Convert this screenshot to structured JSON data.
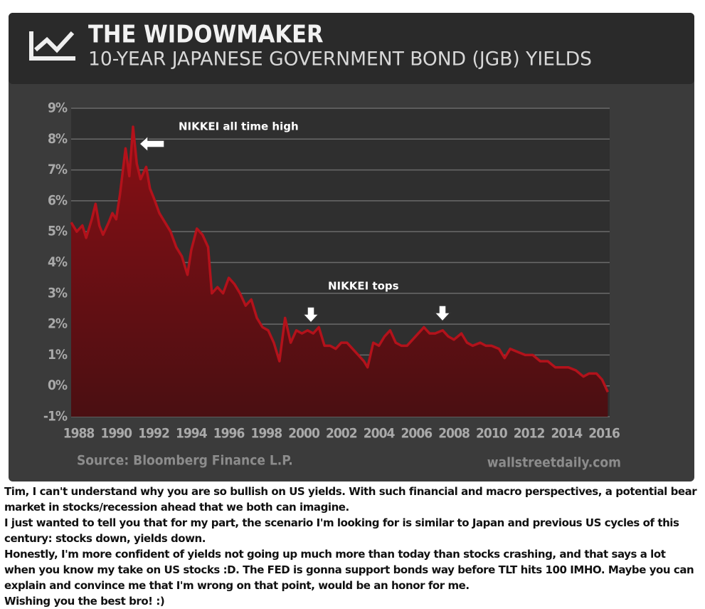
{
  "chart_data": {
    "type": "area",
    "title": "THE WIDOWMAKER",
    "subtitle": "10-YEAR JAPANESE GOVERNMENT BOND (JGB) YIELDS",
    "source": "Source: Bloomberg Finance L.P.",
    "credit": "wallstreetdaily.com",
    "annotations": [
      "NIKKEI all time high",
      "NIKKEI tops"
    ],
    "color": "#b3121b",
    "grid": true,
    "xlim": [
      1987.6,
      2016.3
    ],
    "xticks": [
      1988,
      1990,
      1992,
      1994,
      1996,
      1998,
      2000,
      2002,
      2004,
      2006,
      2008,
      2010,
      2012,
      2014,
      2016
    ],
    "ylim": [
      -1,
      9
    ],
    "yticks": [
      {
        "value": 9,
        "label": "9%"
      },
      {
        "value": 8,
        "label": "8%"
      },
      {
        "value": 7,
        "label": "7%"
      },
      {
        "value": 6,
        "label": "6%"
      },
      {
        "value": 5,
        "label": "5%"
      },
      {
        "value": 4,
        "label": "4%"
      },
      {
        "value": 3,
        "label": "3%"
      },
      {
        "value": 2,
        "label": "2%"
      },
      {
        "value": 1,
        "label": "1%"
      },
      {
        "value": 0,
        "label": "0%"
      },
      {
        "value": -1,
        "label": "-1%"
      }
    ],
    "x": [
      1987.6,
      1987.9,
      1988.2,
      1988.4,
      1988.7,
      1988.9,
      1989.1,
      1989.3,
      1989.6,
      1989.8,
      1990.0,
      1990.2,
      1990.5,
      1990.7,
      1990.9,
      1991.1,
      1991.3,
      1991.6,
      1991.8,
      1992.0,
      1992.3,
      1992.6,
      1992.9,
      1993.2,
      1993.5,
      1993.8,
      1994.0,
      1994.3,
      1994.6,
      1994.9,
      1995.1,
      1995.4,
      1995.7,
      1996.0,
      1996.3,
      1996.6,
      1996.9,
      1997.2,
      1997.5,
      1997.8,
      1998.1,
      1998.4,
      1998.7,
      1999.0,
      1999.3,
      1999.6,
      1999.9,
      2000.2,
      2000.5,
      2000.8,
      2001.1,
      2001.4,
      2001.7,
      2002.0,
      2002.3,
      2002.6,
      2002.9,
      2003.2,
      2003.4,
      2003.7,
      2004.0,
      2004.3,
      2004.6,
      2004.9,
      2005.2,
      2005.5,
      2005.8,
      2006.1,
      2006.4,
      2006.7,
      2007.0,
      2007.4,
      2007.7,
      2008.0,
      2008.4,
      2008.7,
      2009.0,
      2009.4,
      2009.7,
      2010.0,
      2010.4,
      2010.7,
      2011.0,
      2011.4,
      2011.8,
      2012.2,
      2012.6,
      2013.0,
      2013.4,
      2013.8,
      2014.1,
      2014.5,
      2014.9,
      2015.2,
      2015.6,
      2015.9,
      2016.2
    ],
    "values": [
      5.3,
      5.0,
      5.2,
      4.8,
      5.4,
      5.9,
      5.2,
      4.9,
      5.3,
      5.6,
      5.4,
      6.2,
      7.7,
      6.8,
      8.4,
      7.2,
      6.7,
      7.1,
      6.4,
      6.1,
      5.6,
      5.3,
      5.0,
      4.5,
      4.2,
      3.6,
      4.4,
      5.1,
      4.9,
      4.5,
      3.0,
      3.2,
      3.0,
      3.5,
      3.3,
      3.0,
      2.6,
      2.8,
      2.2,
      1.9,
      1.8,
      1.4,
      0.8,
      2.2,
      1.4,
      1.8,
      1.7,
      1.8,
      1.7,
      1.9,
      1.3,
      1.3,
      1.2,
      1.4,
      1.4,
      1.2,
      1.0,
      0.8,
      0.6,
      1.4,
      1.3,
      1.6,
      1.8,
      1.4,
      1.3,
      1.3,
      1.5,
      1.7,
      1.9,
      1.7,
      1.7,
      1.8,
      1.6,
      1.5,
      1.7,
      1.4,
      1.3,
      1.4,
      1.3,
      1.3,
      1.2,
      0.9,
      1.2,
      1.1,
      1.0,
      1.0,
      0.8,
      0.8,
      0.6,
      0.6,
      0.6,
      0.5,
      0.3,
      0.4,
      0.4,
      0.2,
      -0.2
    ]
  },
  "comment": [
    "Tim, I can't understand why you are so bullish on US yields. With such financial and macro perspectives, a potential bear market in stocks/recession ahead that we both can imagine.",
    "I just wanted to tell you that for my part, the scenario I'm looking for is similar to Japan and previous US cycles of this century: stocks down, yields down.",
    "Honestly, I'm more confident of yields not going up much more than today than stocks crashing, and that says a lot when you know my take on US stocks :D. The FED is gonna support bonds way before TLT hits 100 IMHO. Maybe you can explain and convince me that I'm wrong on that point, would be an honor for me.",
    "Wishing you the best bro! :)"
  ]
}
